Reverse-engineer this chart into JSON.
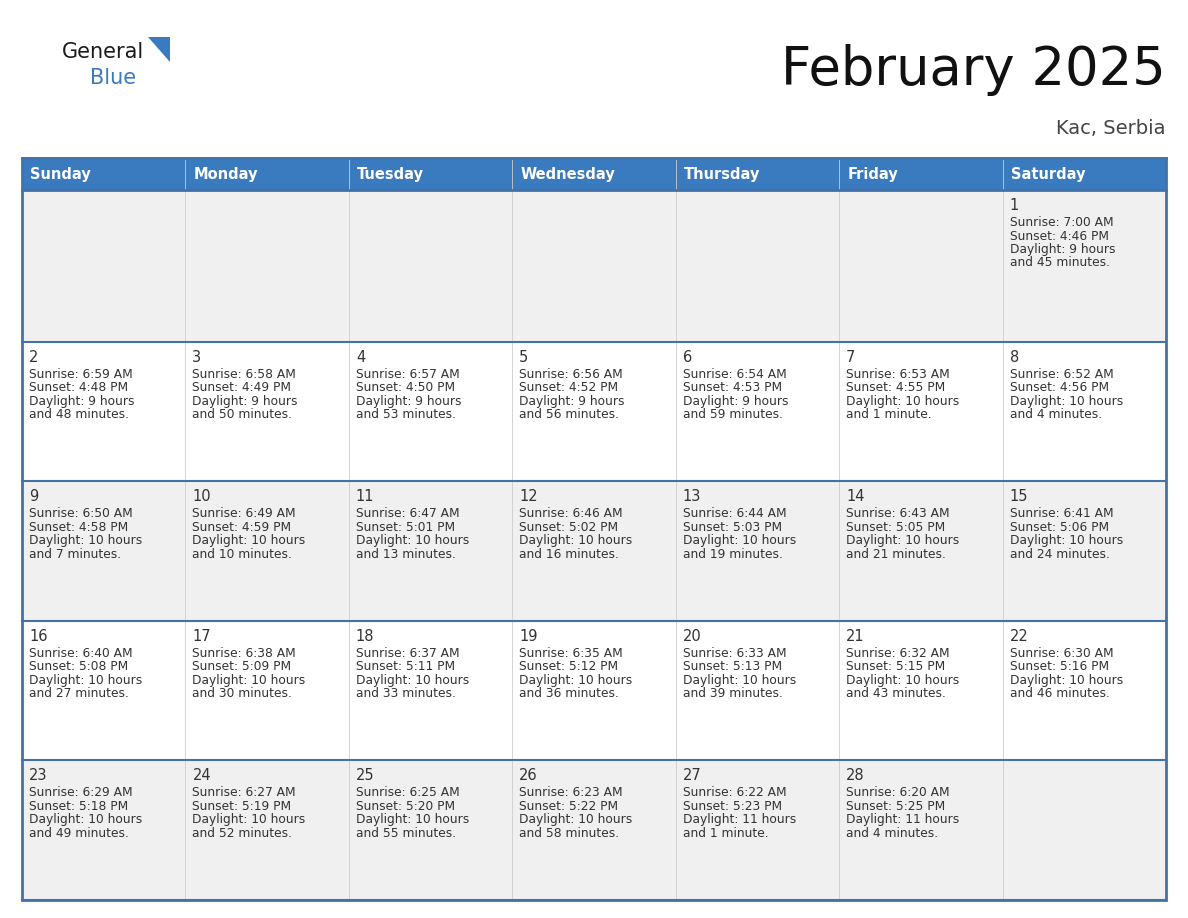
{
  "title": "February 2025",
  "subtitle": "Kac, Serbia",
  "header_color": "#3a7abf",
  "header_text_color": "#ffffff",
  "day_names": [
    "Sunday",
    "Monday",
    "Tuesday",
    "Wednesday",
    "Thursday",
    "Friday",
    "Saturday"
  ],
  "bg_color": "#ffffff",
  "cell_bg_row0": "#f0f0f0",
  "cell_bg_row1": "#ffffff",
  "cell_bg_row2": "#f0f0f0",
  "cell_bg_row3": "#ffffff",
  "cell_bg_row4": "#f0f0f0",
  "cell_border_color": "#4472a8",
  "row_sep_color": "#4472a8",
  "day_num_color": "#333333",
  "info_text_color": "#333333",
  "days": [
    {
      "day": 1,
      "col": 6,
      "row": 0,
      "sunrise": "7:00 AM",
      "sunset": "4:46 PM",
      "daylight": "9 hours and 45 minutes."
    },
    {
      "day": 2,
      "col": 0,
      "row": 1,
      "sunrise": "6:59 AM",
      "sunset": "4:48 PM",
      "daylight": "9 hours and 48 minutes."
    },
    {
      "day": 3,
      "col": 1,
      "row": 1,
      "sunrise": "6:58 AM",
      "sunset": "4:49 PM",
      "daylight": "9 hours and 50 minutes."
    },
    {
      "day": 4,
      "col": 2,
      "row": 1,
      "sunrise": "6:57 AM",
      "sunset": "4:50 PM",
      "daylight": "9 hours and 53 minutes."
    },
    {
      "day": 5,
      "col": 3,
      "row": 1,
      "sunrise": "6:56 AM",
      "sunset": "4:52 PM",
      "daylight": "9 hours and 56 minutes."
    },
    {
      "day": 6,
      "col": 4,
      "row": 1,
      "sunrise": "6:54 AM",
      "sunset": "4:53 PM",
      "daylight": "9 hours and 59 minutes."
    },
    {
      "day": 7,
      "col": 5,
      "row": 1,
      "sunrise": "6:53 AM",
      "sunset": "4:55 PM",
      "daylight": "10 hours and 1 minute."
    },
    {
      "day": 8,
      "col": 6,
      "row": 1,
      "sunrise": "6:52 AM",
      "sunset": "4:56 PM",
      "daylight": "10 hours and 4 minutes."
    },
    {
      "day": 9,
      "col": 0,
      "row": 2,
      "sunrise": "6:50 AM",
      "sunset": "4:58 PM",
      "daylight": "10 hours and 7 minutes."
    },
    {
      "day": 10,
      "col": 1,
      "row": 2,
      "sunrise": "6:49 AM",
      "sunset": "4:59 PM",
      "daylight": "10 hours and 10 minutes."
    },
    {
      "day": 11,
      "col": 2,
      "row": 2,
      "sunrise": "6:47 AM",
      "sunset": "5:01 PM",
      "daylight": "10 hours and 13 minutes."
    },
    {
      "day": 12,
      "col": 3,
      "row": 2,
      "sunrise": "6:46 AM",
      "sunset": "5:02 PM",
      "daylight": "10 hours and 16 minutes."
    },
    {
      "day": 13,
      "col": 4,
      "row": 2,
      "sunrise": "6:44 AM",
      "sunset": "5:03 PM",
      "daylight": "10 hours and 19 minutes."
    },
    {
      "day": 14,
      "col": 5,
      "row": 2,
      "sunrise": "6:43 AM",
      "sunset": "5:05 PM",
      "daylight": "10 hours and 21 minutes."
    },
    {
      "day": 15,
      "col": 6,
      "row": 2,
      "sunrise": "6:41 AM",
      "sunset": "5:06 PM",
      "daylight": "10 hours and 24 minutes."
    },
    {
      "day": 16,
      "col": 0,
      "row": 3,
      "sunrise": "6:40 AM",
      "sunset": "5:08 PM",
      "daylight": "10 hours and 27 minutes."
    },
    {
      "day": 17,
      "col": 1,
      "row": 3,
      "sunrise": "6:38 AM",
      "sunset": "5:09 PM",
      "daylight": "10 hours and 30 minutes."
    },
    {
      "day": 18,
      "col": 2,
      "row": 3,
      "sunrise": "6:37 AM",
      "sunset": "5:11 PM",
      "daylight": "10 hours and 33 minutes."
    },
    {
      "day": 19,
      "col": 3,
      "row": 3,
      "sunrise": "6:35 AM",
      "sunset": "5:12 PM",
      "daylight": "10 hours and 36 minutes."
    },
    {
      "day": 20,
      "col": 4,
      "row": 3,
      "sunrise": "6:33 AM",
      "sunset": "5:13 PM",
      "daylight": "10 hours and 39 minutes."
    },
    {
      "day": 21,
      "col": 5,
      "row": 3,
      "sunrise": "6:32 AM",
      "sunset": "5:15 PM",
      "daylight": "10 hours and 43 minutes."
    },
    {
      "day": 22,
      "col": 6,
      "row": 3,
      "sunrise": "6:30 AM",
      "sunset": "5:16 PM",
      "daylight": "10 hours and 46 minutes."
    },
    {
      "day": 23,
      "col": 0,
      "row": 4,
      "sunrise": "6:29 AM",
      "sunset": "5:18 PM",
      "daylight": "10 hours and 49 minutes."
    },
    {
      "day": 24,
      "col": 1,
      "row": 4,
      "sunrise": "6:27 AM",
      "sunset": "5:19 PM",
      "daylight": "10 hours and 52 minutes."
    },
    {
      "day": 25,
      "col": 2,
      "row": 4,
      "sunrise": "6:25 AM",
      "sunset": "5:20 PM",
      "daylight": "10 hours and 55 minutes."
    },
    {
      "day": 26,
      "col": 3,
      "row": 4,
      "sunrise": "6:23 AM",
      "sunset": "5:22 PM",
      "daylight": "10 hours and 58 minutes."
    },
    {
      "day": 27,
      "col": 4,
      "row": 4,
      "sunrise": "6:22 AM",
      "sunset": "5:23 PM",
      "daylight": "11 hours and 1 minute."
    },
    {
      "day": 28,
      "col": 5,
      "row": 4,
      "sunrise": "6:20 AM",
      "sunset": "5:25 PM",
      "daylight": "11 hours and 4 minutes."
    }
  ]
}
